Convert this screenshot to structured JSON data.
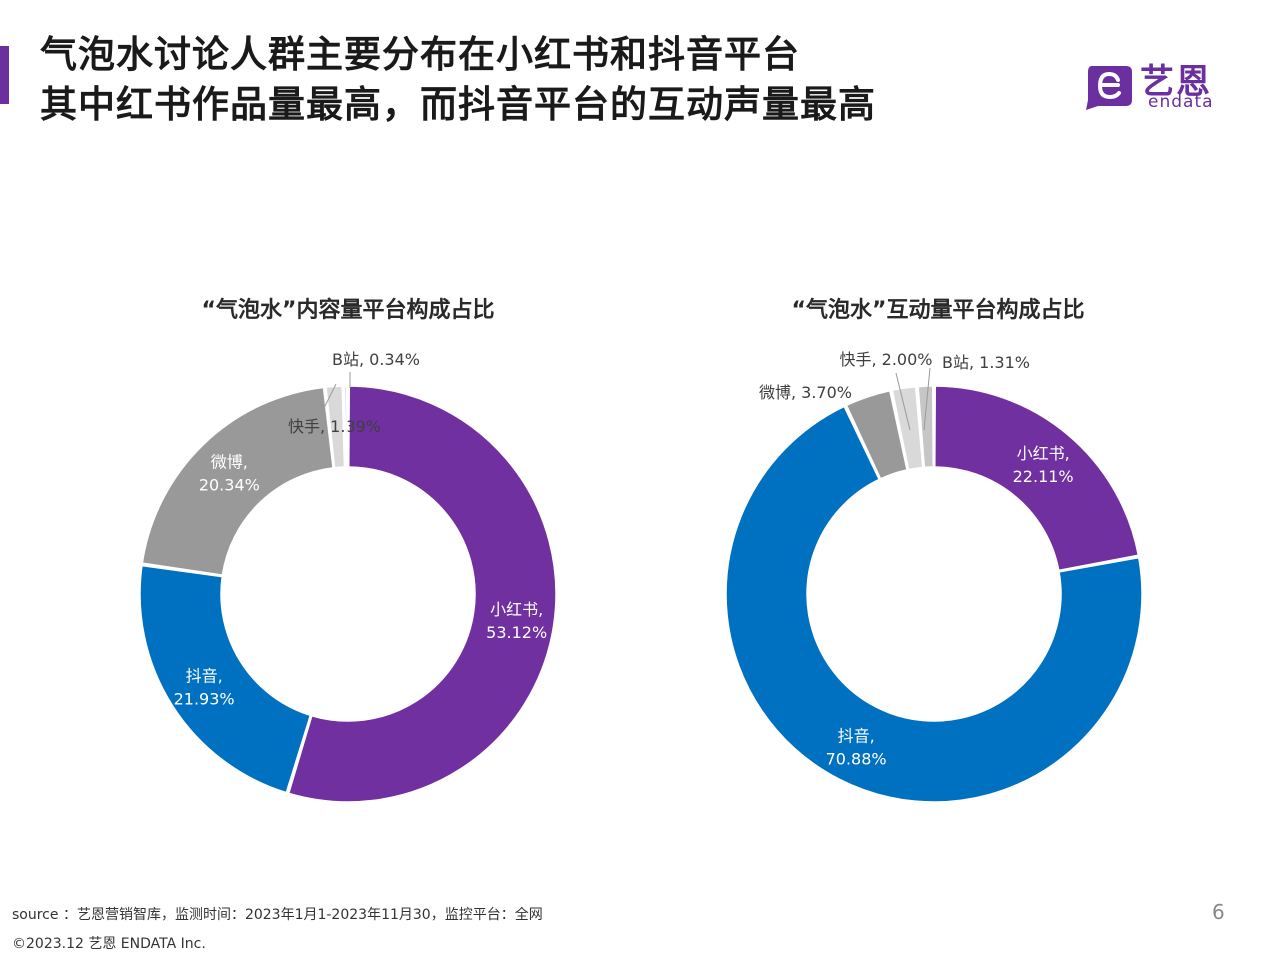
{
  "title": {
    "line1": "气泡水讨论人群主要分布在小红书和抖音平台",
    "line2": "其中红书作品量最高，而抖音平台的互动声量最高"
  },
  "logo": {
    "cn": "艺恩",
    "en": "endata"
  },
  "colors": {
    "accent": "#6b2fa0",
    "xhs": "#7030a0",
    "douyin": "#0070c0",
    "weibo": "#999999",
    "kuaishou": "#d9d9d9",
    "bili": "#c6c6c6"
  },
  "chart_data": [
    {
      "type": "pie",
      "donut": true,
      "title": "“气泡水”内容量平台构成占比",
      "slices": [
        {
          "name": "小红书",
          "value": 53.12,
          "label": "53.12%",
          "color": "#7030a0",
          "label_style": "inside"
        },
        {
          "name": "抖音",
          "value": 21.93,
          "label": "21.93%",
          "color": "#0070c0",
          "label_style": "inside"
        },
        {
          "name": "微博",
          "value": 20.34,
          "label": "20.34%",
          "color": "#999999",
          "label_style": "inside"
        },
        {
          "name": "快手",
          "value": 1.39,
          "label": "1.39%",
          "color": "#d9d9d9",
          "label_style": "inline"
        },
        {
          "name": "B站",
          "value": 0.34,
          "label": "0.34%",
          "color": "#c6c6c6",
          "label_style": "outside"
        }
      ]
    },
    {
      "type": "pie",
      "donut": true,
      "title": "“气泡水”互动量平台构成占比",
      "slices": [
        {
          "name": "小红书",
          "value": 22.11,
          "label": "22.11%",
          "color": "#7030a0",
          "label_style": "inside"
        },
        {
          "name": "抖音",
          "value": 70.88,
          "label": "70.88%",
          "color": "#0070c0",
          "label_style": "inside"
        },
        {
          "name": "微博",
          "value": 3.7,
          "label": "3.70%",
          "color": "#999999",
          "label_style": "outside"
        },
        {
          "name": "快手",
          "value": 2.0,
          "label": "2.00%",
          "color": "#d9d9d9",
          "label_style": "outside"
        },
        {
          "name": "B站",
          "value": 1.31,
          "label": "1.31%",
          "color": "#c6c6c6",
          "label_style": "outside"
        }
      ]
    }
  ],
  "footer": {
    "source": "source ：艺恩营销智库，监测时间：2023年1月1-2023年11月30，监控平台：全网",
    "copyright": "©2023.12  艺恩 ENDATA Inc.",
    "page": "6"
  }
}
